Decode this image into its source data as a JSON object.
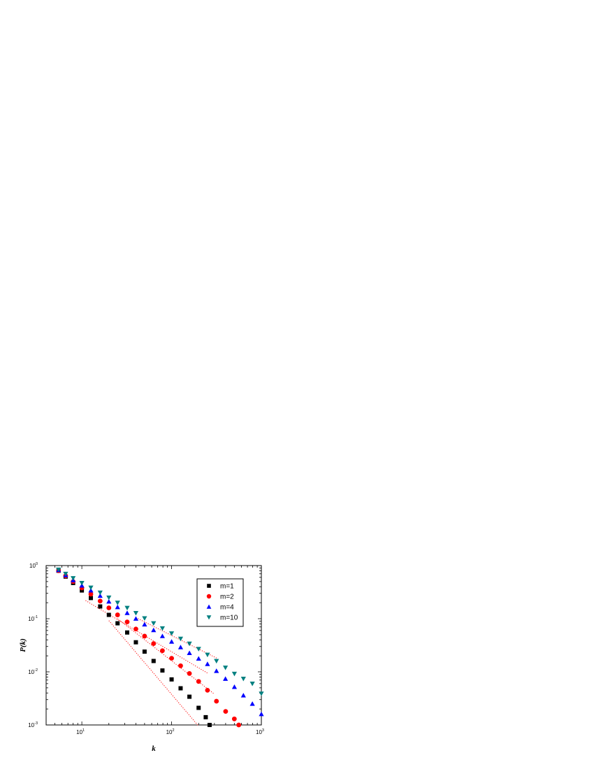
{
  "chart_data": {
    "type": "scatter",
    "title": "",
    "xlabel": "k",
    "ylabel": "P(k)",
    "xscale": "log",
    "yscale": "log",
    "xlim": [
      4,
      1000
    ],
    "ylim": [
      0.001,
      1
    ],
    "x_ticks": [
      {
        "base": "10",
        "exp": "1"
      },
      {
        "base": "10",
        "exp": "2"
      },
      {
        "base": "10",
        "exp": "3"
      }
    ],
    "y_ticks": [
      {
        "base": "10",
        "exp": "-3"
      },
      {
        "base": "10",
        "exp": "-2"
      },
      {
        "base": "10",
        "exp": "-1"
      },
      {
        "base": "10",
        "exp": "0"
      }
    ],
    "grid": false,
    "legend_position": "top-right",
    "series": [
      {
        "name": "m=1",
        "marker": "square",
        "color": "#000000",
        "points": [
          [
            5.5,
            0.8
          ],
          [
            6.6,
            0.62
          ],
          [
            8,
            0.47
          ],
          [
            10,
            0.34
          ],
          [
            12.6,
            0.245
          ],
          [
            16,
            0.17
          ],
          [
            20,
            0.118
          ],
          [
            25,
            0.082
          ],
          [
            32,
            0.055
          ],
          [
            40,
            0.036
          ],
          [
            50,
            0.024
          ],
          [
            63,
            0.016
          ],
          [
            79,
            0.0106
          ],
          [
            100,
            0.0072
          ],
          [
            126,
            0.0049
          ],
          [
            158,
            0.0034
          ],
          [
            200,
            0.0021
          ],
          [
            240,
            0.0014
          ],
          [
            265,
            0.001
          ]
        ]
      },
      {
        "name": "m=2",
        "marker": "circle",
        "color": "#ff0000",
        "points": [
          [
            5.5,
            0.8
          ],
          [
            6.6,
            0.64
          ],
          [
            8,
            0.5
          ],
          [
            10,
            0.38
          ],
          [
            12.6,
            0.29
          ],
          [
            16,
            0.215
          ],
          [
            20,
            0.16
          ],
          [
            25,
            0.118
          ],
          [
            32,
            0.087
          ],
          [
            40,
            0.064
          ],
          [
            50,
            0.047
          ],
          [
            63,
            0.034
          ],
          [
            79,
            0.025
          ],
          [
            100,
            0.018
          ],
          [
            126,
            0.013
          ],
          [
            158,
            0.0093
          ],
          [
            200,
            0.0066
          ],
          [
            251,
            0.0045
          ],
          [
            316,
            0.0028
          ],
          [
            400,
            0.0018
          ],
          [
            500,
            0.0013
          ],
          [
            560,
            0.001
          ]
        ]
      },
      {
        "name": "m=4",
        "marker": "triangle-up",
        "color": "#0000ff",
        "points": [
          [
            5.5,
            0.82
          ],
          [
            6.6,
            0.66
          ],
          [
            8,
            0.53
          ],
          [
            10,
            0.42
          ],
          [
            12.6,
            0.34
          ],
          [
            16,
            0.27
          ],
          [
            20,
            0.21
          ],
          [
            25,
            0.165
          ],
          [
            32,
            0.128
          ],
          [
            40,
            0.1
          ],
          [
            50,
            0.078
          ],
          [
            63,
            0.061
          ],
          [
            79,
            0.047
          ],
          [
            100,
            0.037
          ],
          [
            126,
            0.029
          ],
          [
            158,
            0.0226
          ],
          [
            200,
            0.0177
          ],
          [
            251,
            0.014
          ],
          [
            316,
            0.0104
          ],
          [
            398,
            0.0074
          ],
          [
            501,
            0.0052
          ],
          [
            631,
            0.0036
          ],
          [
            794,
            0.0025
          ],
          [
            1000,
            0.0016
          ]
        ]
      },
      {
        "name": "m=10",
        "marker": "triangle-down",
        "color": "#008080",
        "points": [
          [
            5.5,
            0.84
          ],
          [
            6.6,
            0.7
          ],
          [
            8,
            0.58
          ],
          [
            10,
            0.47
          ],
          [
            12.6,
            0.385
          ],
          [
            16,
            0.31
          ],
          [
            20,
            0.25
          ],
          [
            25,
            0.2
          ],
          [
            32,
            0.16
          ],
          [
            40,
            0.128
          ],
          [
            50,
            0.102
          ],
          [
            63,
            0.082
          ],
          [
            79,
            0.066
          ],
          [
            100,
            0.053
          ],
          [
            126,
            0.042
          ],
          [
            158,
            0.034
          ],
          [
            200,
            0.027
          ],
          [
            251,
            0.021
          ],
          [
            316,
            0.016
          ],
          [
            398,
            0.012
          ],
          [
            501,
            0.0092
          ],
          [
            631,
            0.0074
          ],
          [
            794,
            0.006
          ],
          [
            1000,
            0.0039
          ]
        ]
      }
    ],
    "reference_lines": [
      {
        "style": "dotted",
        "color": "#ff0000",
        "points": [
          [
            11,
            0.22
          ],
          [
            250,
            0.0095
          ]
        ]
      },
      {
        "style": "dotted",
        "color": "#ff0000",
        "points": [
          [
            20,
            0.092
          ],
          [
            200,
            0.00095
          ]
        ]
      },
      {
        "style": "dotted",
        "color": "#ff0000",
        "points": [
          [
            25,
            0.1
          ],
          [
            300,
            0.0038
          ]
        ]
      },
      {
        "style": "dotted",
        "color": "#ff0000",
        "points": [
          [
            40,
            0.105
          ],
          [
            320,
            0.018
          ]
        ]
      }
    ]
  }
}
